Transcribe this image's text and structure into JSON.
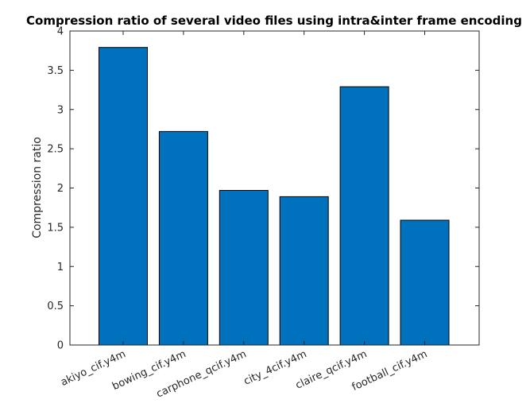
{
  "chart_data": {
    "type": "bar",
    "title": "Compression ratio of several video files using intra&inter frame encoding",
    "xlabel": "",
    "ylabel": "Compression ratio",
    "categories": [
      "akiyo_cif.y4m",
      "bowing_cif.y4m",
      "carphone_qcif.y4m",
      "city_4cif.y4m",
      "claire_qcif.y4m",
      "football_cif.y4m"
    ],
    "values": [
      3.79,
      2.72,
      1.97,
      1.89,
      3.29,
      1.59
    ],
    "ylim": [
      0,
      4
    ],
    "yticks": [
      "0",
      "0.5",
      "1",
      "1.5",
      "2",
      "2.5",
      "3",
      "3.5",
      "4"
    ],
    "grid": false,
    "bar_color": "#0072BD",
    "edge_color": "#000000"
  }
}
